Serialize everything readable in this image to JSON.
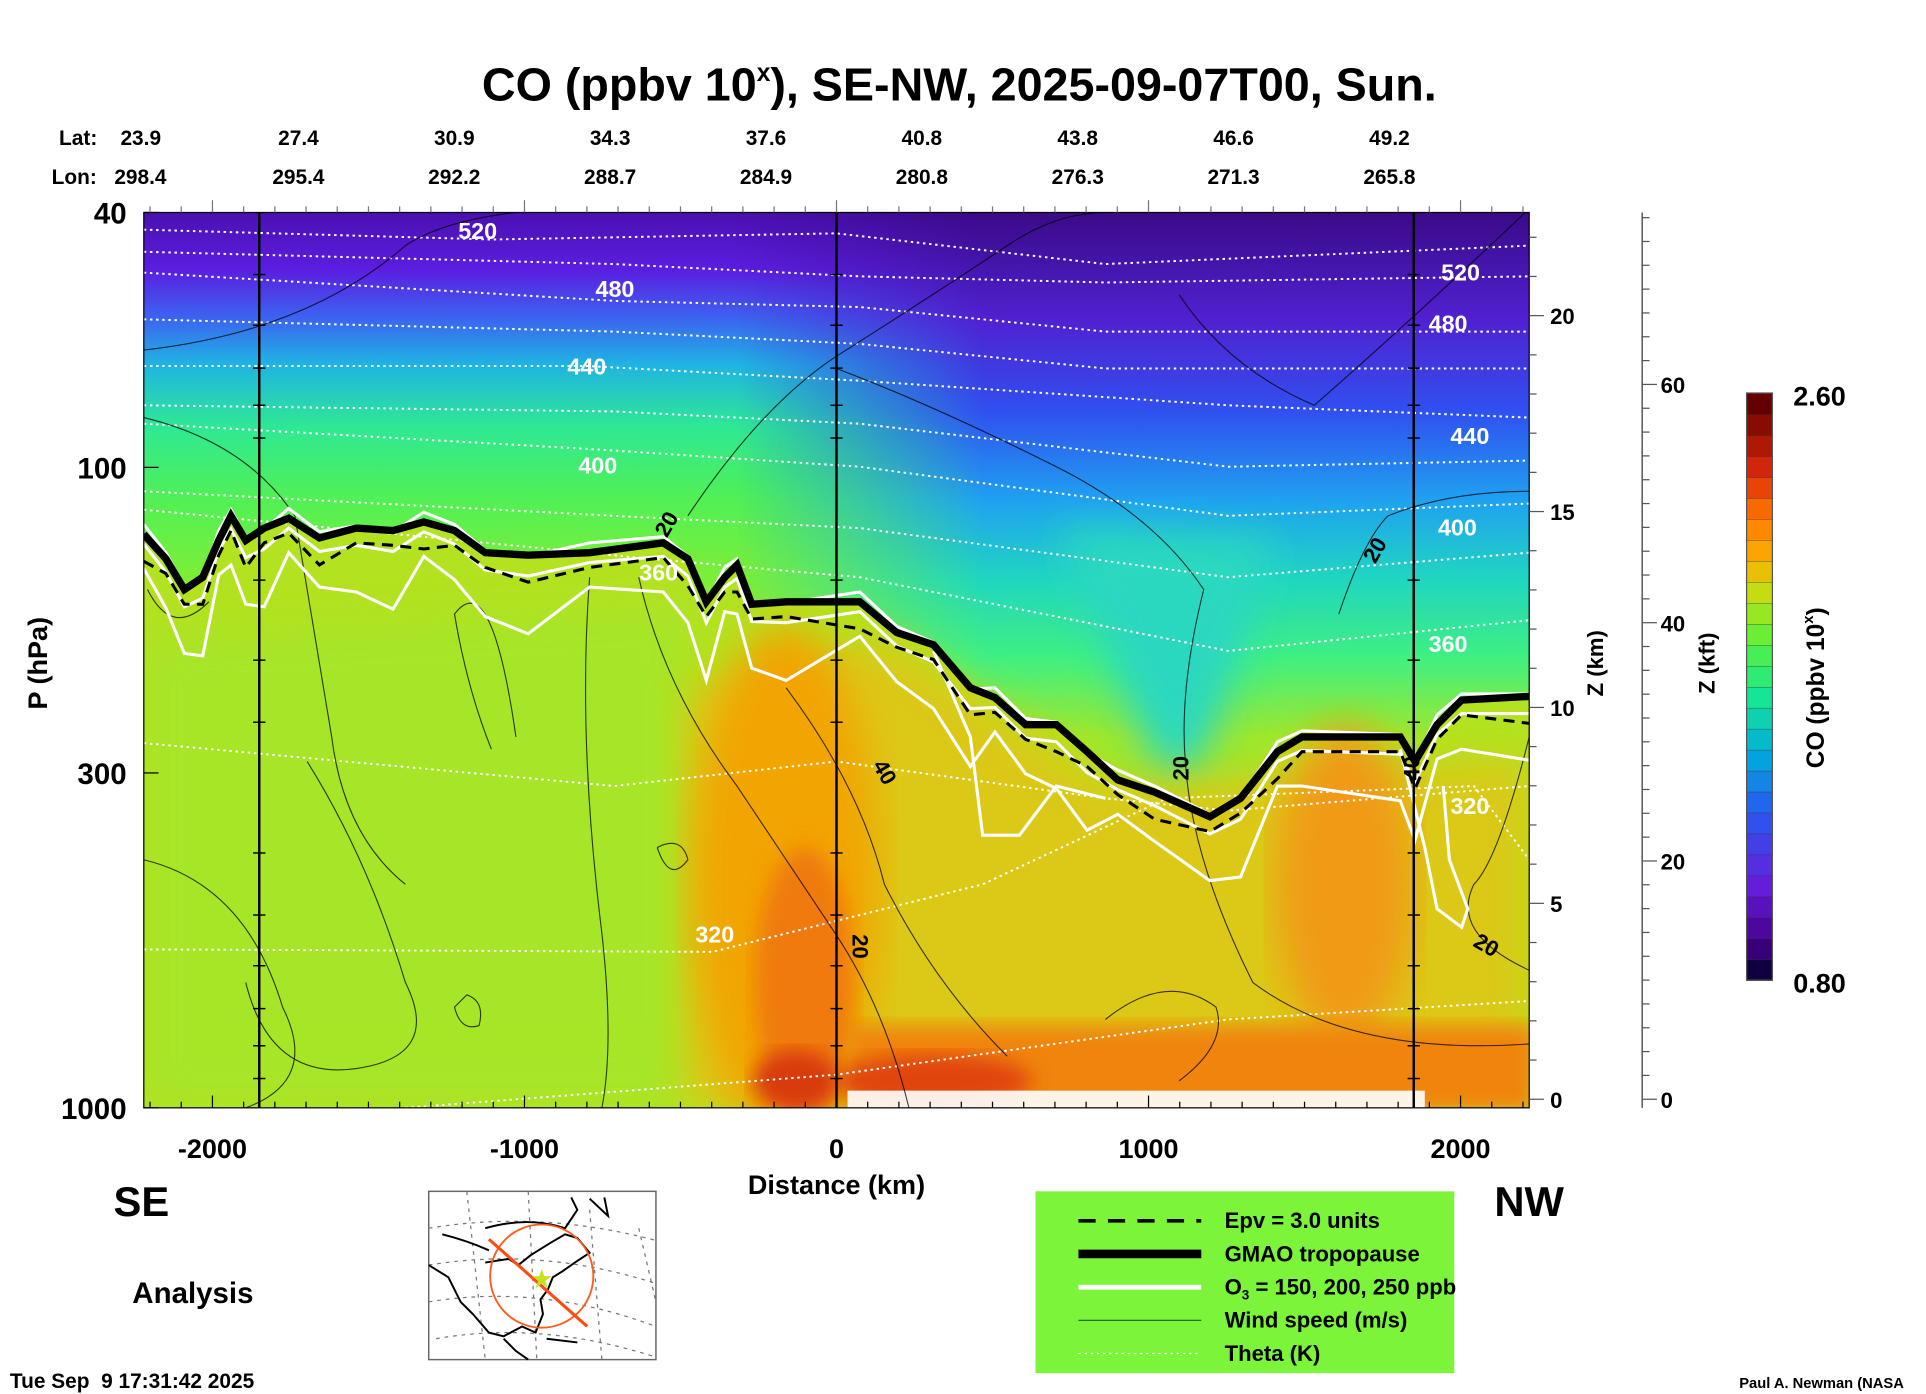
{
  "chart_data": {
    "type": "heatmap",
    "title": "CO (ppbv 10",
    "title_sup": "x",
    "title_rest": "), SE-NW, 2025-09-07T00, Sun.",
    "xlabel": "Distance (km)",
    "ylabel": "P (hPa)",
    "xlim": [
      -2220,
      2220
    ],
    "ylim": [
      1000,
      40
    ],
    "yscale": "log",
    "xticks": [
      -2000,
      -1000,
      0,
      1000,
      2000
    ],
    "xtick_labels": [
      "-2000",
      "-1000",
      "0",
      "1000",
      "2000"
    ],
    "yticks": [
      40,
      100,
      300,
      1000
    ],
    "ytick_labels": [
      "40",
      "100",
      "300",
      "1000"
    ],
    "z_km_axis": {
      "label": "Z (km)",
      "ticks": [
        0,
        5,
        10,
        15,
        20
      ],
      "tick_labels": [
        "0",
        "5",
        "10",
        "15",
        "20"
      ]
    },
    "z_kft_axis": {
      "label": "Z (kft)",
      "ticks": [
        0,
        20,
        40,
        60
      ],
      "tick_labels": [
        "0",
        "20",
        "40",
        "60"
      ]
    },
    "lat_label": "Lat:",
    "lon_label": "Lon:",
    "lat": [
      "23.9",
      "27.4",
      "30.9",
      "34.3",
      "37.6",
      "40.8",
      "43.8",
      "46.6",
      "49.2"
    ],
    "lon": [
      "298.4",
      "295.4",
      "292.2",
      "288.7",
      "284.9",
      "280.8",
      "276.3",
      "271.3",
      "265.8"
    ],
    "latlon_distances": [
      -2220,
      -1720,
      -1220,
      -720,
      -220,
      280,
      780,
      1280,
      1780
    ],
    "vertical_marker_lines_km": [
      -1850,
      0,
      1850
    ],
    "colorbar": {
      "label": "CO (ppbv 10",
      "label_sup": "x",
      "label_end": ")",
      "min": 0.8,
      "max": 2.6,
      "min_label": "0.80",
      "max_label": "2.60",
      "levels": 28
    },
    "theta_labels": [
      {
        "text": "520",
        "x": -1150,
        "p": 43
      },
      {
        "text": "480",
        "x": -710,
        "p": 53
      },
      {
        "text": "440",
        "x": -800,
        "p": 70
      },
      {
        "text": "400",
        "x": -765,
        "p": 100
      },
      {
        "text": "360",
        "x": -570,
        "p": 147
      },
      {
        "text": "320",
        "x": -390,
        "p": 540
      },
      {
        "text": "520",
        "x": 2000,
        "p": 50
      },
      {
        "text": "480",
        "x": 1960,
        "p": 60
      },
      {
        "text": "440",
        "x": 2030,
        "p": 90
      },
      {
        "text": "400",
        "x": 1990,
        "p": 125
      },
      {
        "text": "360",
        "x": 1960,
        "p": 190
      },
      {
        "text": "320",
        "x": 2030,
        "p": 340
      }
    ],
    "wind_labels": [
      {
        "text": "20",
        "x": -540,
        "p": 123
      },
      {
        "text": "40",
        "x": 150,
        "p": 300
      },
      {
        "text": "20",
        "x": 70,
        "p": 560
      },
      {
        "text": "20",
        "x": 1730,
        "p": 135
      },
      {
        "text": "20",
        "x": 1110,
        "p": 295
      },
      {
        "text": "20",
        "x": 2080,
        "p": 560
      },
      {
        "text": "40",
        "x": 1850,
        "p": 295
      }
    ],
    "legend": [
      {
        "label": "Epv = 3.0 units",
        "style": "dashed"
      },
      {
        "label": "GMAO tropopause",
        "style": "thick"
      },
      {
        "label": "O",
        "sub": "3",
        "label_rest": " = 150, 200, 250 ppb",
        "style": "white"
      },
      {
        "label": "Wind speed (m/s)",
        "style": "thin"
      },
      {
        "label": "Theta (K)",
        "style": "dotted"
      }
    ],
    "legend_bg": "#7cf43a"
  },
  "labels": {
    "left_dir": "SE",
    "right_dir": "NW",
    "analysis": "Analysis",
    "timestamp": "Tue Sep  9 17:31:42 2025",
    "credit": "Paul A. Newman (NASA"
  }
}
